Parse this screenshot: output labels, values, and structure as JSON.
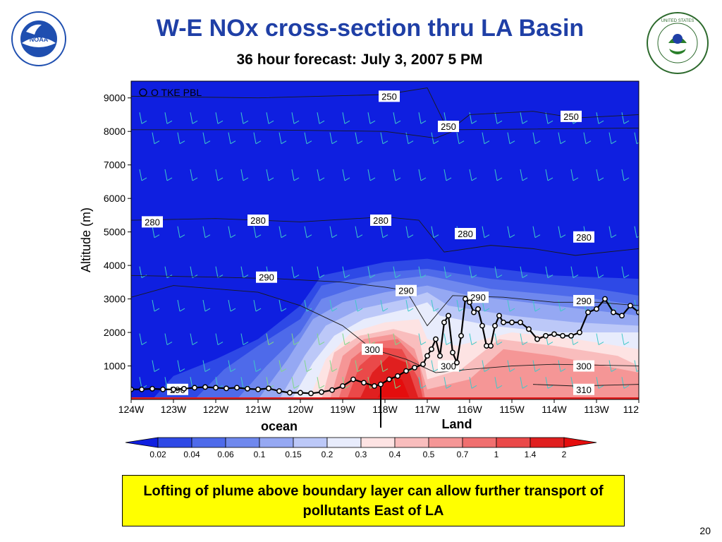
{
  "slide": {
    "title": "W-E NOx cross-section thru LA Basin",
    "subtitle": "36 hour forecast: July 3, 2007 5 PM",
    "callout": "Lofting of plume above boundary layer can allow further transport of pollutants East of LA",
    "page_number": "20",
    "logos": {
      "left": "noaa-logo",
      "right": "epa-logo"
    },
    "colors": {
      "title": "#1f3fa6",
      "callout_bg": "#ffff00",
      "pbl_line": "#000000"
    }
  },
  "chart_data": {
    "type": "heatmap",
    "title": "",
    "xlabel": "",
    "ylabel": "Altitude (m)",
    "legend_label": "O TKE PBL",
    "xlim": [
      -124,
      -112
    ],
    "ylim": [
      0,
      9500
    ],
    "x_ticks": [
      "124W",
      "123W",
      "122W",
      "121W",
      "120W",
      "119W",
      "118W",
      "117W",
      "116W",
      "115W",
      "114W",
      "113W",
      "112"
    ],
    "y_ticks": [
      1000,
      2000,
      3000,
      4000,
      5000,
      6000,
      7000,
      8000,
      9000
    ],
    "colorbar": {
      "labels": [
        "0.02",
        "0.04",
        "0.06",
        "0.1",
        "0.15",
        "0.2",
        "0.3",
        "0.4",
        "0.5",
        "0.7",
        "1",
        "1.4",
        "2"
      ],
      "colors": [
        "#0f1fe0",
        "#2e49e6",
        "#4e6aea",
        "#6f88ee",
        "#95a8f3",
        "#bcc8f8",
        "#e8ecfc",
        "#fde3e3",
        "#f9bdbd",
        "#f59696",
        "#f06f6f",
        "#ea4949",
        "#e01f1f",
        "#e40d0d"
      ]
    },
    "annotations": [
      {
        "text": "ocean",
        "x": -120.5
      },
      {
        "text": "Land",
        "x": -116.3
      }
    ],
    "coast_x": -118.1,
    "contour_labels": [
      {
        "text": "250",
        "x": -117.9,
        "y": 9050
      },
      {
        "text": "250",
        "x": -116.5,
        "y": 8150
      },
      {
        "text": "250",
        "x": -113.6,
        "y": 8450
      },
      {
        "text": "280",
        "x": -123.5,
        "y": 5300
      },
      {
        "text": "280",
        "x": -121.0,
        "y": 5350
      },
      {
        "text": "280",
        "x": -118.1,
        "y": 5350
      },
      {
        "text": "280",
        "x": -116.1,
        "y": 4950
      },
      {
        "text": "280",
        "x": -113.3,
        "y": 4850
      },
      {
        "text": "290",
        "x": -120.8,
        "y": 3650
      },
      {
        "text": "290",
        "x": -117.5,
        "y": 3250
      },
      {
        "text": "290",
        "x": -115.8,
        "y": 3050
      },
      {
        "text": "290",
        "x": -113.3,
        "y": 2950
      },
      {
        "text": "300",
        "x": -118.3,
        "y": 1500
      },
      {
        "text": "300",
        "x": -116.5,
        "y": 1000
      },
      {
        "text": "300",
        "x": -113.3,
        "y": 1000
      },
      {
        "text": "290",
        "x": -122.9,
        "y": 300
      },
      {
        "text": "310",
        "x": -113.3,
        "y": 300
      }
    ],
    "series": [
      {
        "name": "TKE PBL",
        "x": [
          -124,
          -123.75,
          -123.5,
          -123.25,
          -123,
          -122.75,
          -122.5,
          -122.25,
          -122,
          -121.75,
          -121.5,
          -121.25,
          -121,
          -120.75,
          -120.5,
          -120.25,
          -120,
          -119.75,
          -119.5,
          -119.25,
          -119,
          -118.75,
          -118.5,
          -118.25,
          -118.1,
          -117.9,
          -117.7,
          -117.5,
          -117.3,
          -117.1,
          -117.0,
          -116.9,
          -116.8,
          -116.7,
          -116.6,
          -116.5,
          -116.4,
          -116.3,
          -116.2,
          -116.1,
          -116.0,
          -115.9,
          -115.8,
          -115.7,
          -115.6,
          -115.5,
          -115.4,
          -115.3,
          -115.2,
          -115.0,
          -114.8,
          -114.6,
          -114.4,
          -114.2,
          -114.0,
          -113.8,
          -113.6,
          -113.4,
          -113.2,
          -113.0,
          -112.8,
          -112.6,
          -112.4,
          -112.2,
          -112.0
        ],
        "y": [
          300,
          300,
          320,
          300,
          300,
          320,
          350,
          370,
          350,
          330,
          350,
          320,
          300,
          330,
          250,
          200,
          200,
          180,
          220,
          280,
          400,
          600,
          500,
          400,
          450,
          600,
          700,
          850,
          950,
          1050,
          1300,
          1500,
          1800,
          1300,
          2300,
          2500,
          1400,
          1100,
          1900,
          3000,
          2900,
          2600,
          2700,
          2200,
          1600,
          1600,
          2200,
          2500,
          2300,
          2300,
          2300,
          2100,
          1800,
          1900,
          1950,
          1900,
          1900,
          2000,
          2600,
          2700,
          3000,
          2600,
          2500,
          2800,
          2600
        ]
      }
    ]
  }
}
